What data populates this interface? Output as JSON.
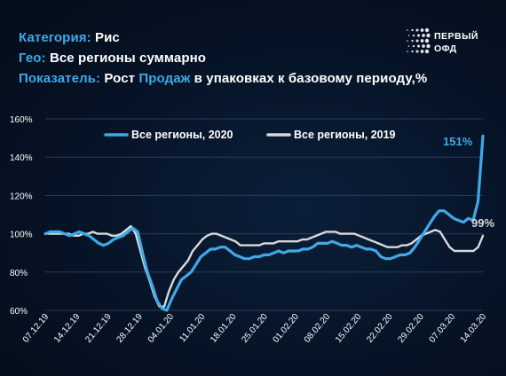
{
  "header": {
    "category_key": "Категория:",
    "category_val": "Рис",
    "geo_key": "Гео:",
    "geo_val": "Все регионы суммарно",
    "metric_key": "Показатель:",
    "metric_pre": "Рост",
    "metric_hl": "Продаж",
    "metric_post": "в упаковках к базовому периоду,%"
  },
  "logo": {
    "line1": "ПЕРВЫЙ",
    "line2": "ОФД"
  },
  "colors": {
    "series2020": "#3fa9e8",
    "series2019": "#d9d9d9",
    "grid": "#2a3b55",
    "text": "#ffffff",
    "accent": "#3fa9e8"
  },
  "chart_data": {
    "type": "line",
    "title": "",
    "xlabel": "",
    "ylabel": "",
    "ylim": [
      60,
      160
    ],
    "yticks": [
      "60%",
      "80%",
      "100%",
      "120%",
      "140%",
      "160%"
    ],
    "x_ticks": [
      "07.12.19",
      "14.12.19",
      "21.12.19",
      "28.12.19",
      "04.01.20",
      "11.01.20",
      "18.01.20",
      "25.01.20",
      "01.02.20",
      "08.02.20",
      "15.02.20",
      "22.02.20",
      "29.02.20",
      "07.03.20",
      "14.03.20"
    ],
    "grid": true,
    "legend_position": "top",
    "series": [
      {
        "name": "Все регионы, 2020",
        "end_label": "151%",
        "values": [
          100,
          101,
          101,
          101,
          100,
          99,
          100,
          101,
          100,
          99,
          97,
          95,
          94,
          95,
          97,
          98,
          99,
          101,
          103,
          101,
          90,
          80,
          73,
          65,
          61,
          60,
          66,
          71,
          76,
          78,
          80,
          84,
          88,
          90,
          92,
          92,
          93,
          93,
          91,
          89,
          88,
          87,
          87,
          88,
          88,
          89,
          89,
          90,
          91,
          90,
          91,
          91,
          91,
          92,
          92,
          93,
          95,
          95,
          95,
          96,
          95,
          94,
          94,
          93,
          94,
          93,
          92,
          92,
          91,
          88,
          87,
          87,
          88,
          89,
          89,
          90,
          93,
          97,
          101,
          105,
          109,
          112,
          112,
          110,
          108,
          107,
          106,
          108,
          107,
          117,
          151
        ]
      },
      {
        "name": "Все регионы, 2019",
        "end_label": "99%",
        "values": [
          100,
          100,
          100,
          100,
          100,
          100,
          99,
          99,
          100,
          100,
          101,
          100,
          100,
          100,
          99,
          99,
          100,
          102,
          104,
          100,
          91,
          82,
          75,
          67,
          62,
          62,
          70,
          76,
          80,
          83,
          86,
          91,
          94,
          97,
          99,
          100,
          100,
          99,
          98,
          97,
          96,
          94,
          94,
          94,
          94,
          94,
          95,
          95,
          95,
          96,
          96,
          96,
          96,
          96,
          97,
          97,
          98,
          99,
          100,
          101,
          101,
          101,
          100,
          100,
          100,
          100,
          99,
          98,
          97,
          96,
          95,
          94,
          93,
          93,
          93,
          94,
          94,
          95,
          97,
          99,
          100,
          101,
          102,
          101,
          97,
          93,
          91,
          91,
          91,
          91,
          91,
          93,
          99
        ]
      }
    ]
  }
}
